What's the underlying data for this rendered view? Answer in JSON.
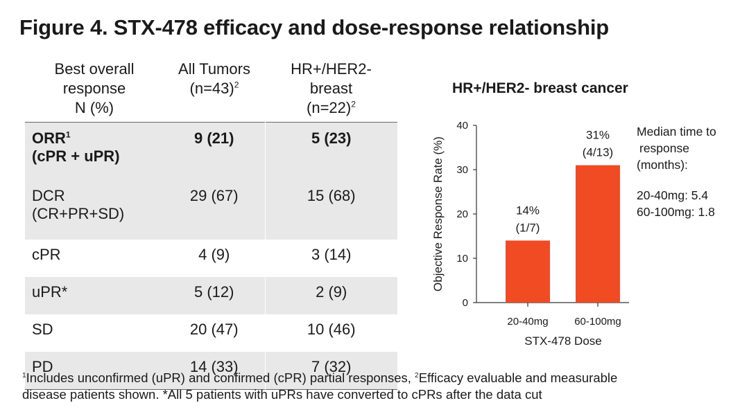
{
  "title": "Figure 4. STX-478 efficacy and dose-response relationship",
  "table": {
    "headers": [
      {
        "lines": [
          "Best overall",
          "response",
          "N (%)"
        ]
      },
      {
        "lines": [
          "All Tumors",
          "(n=43)"
        ],
        "sup": "2"
      },
      {
        "lines": [
          "HR+/HER2-",
          "breast",
          "(n=22)"
        ],
        "sup": "2"
      }
    ],
    "rows": [
      {
        "label": [
          "ORR",
          "(cPR + uPR)"
        ],
        "label_sup": "1",
        "all": "9 (21)",
        "breast": "5 (23)",
        "bold": true
      },
      {
        "label": [
          "DCR",
          "(CR+PR+SD)"
        ],
        "all": "29 (67)",
        "breast": "15 (68)"
      },
      {
        "label": [
          "cPR"
        ],
        "all": "4 (9)",
        "breast": "3 (14)"
      },
      {
        "label": [
          "uPR*"
        ],
        "all": "5 (12)",
        "breast": "2 (9)"
      },
      {
        "label": [
          "SD"
        ],
        "all": "20 (47)",
        "breast": "10 (46)"
      },
      {
        "label": [
          "PD"
        ],
        "all": "14 (33)",
        "breast": "7 (32)"
      }
    ]
  },
  "chart_data": {
    "type": "bar",
    "title": "HR+/HER2- breast cancer",
    "categories": [
      "20-40mg",
      "60-100mg"
    ],
    "values": [
      14,
      31
    ],
    "data_labels": [
      [
        "14%",
        "(1/7)"
      ],
      [
        "31%",
        "(4/13)"
      ]
    ],
    "xlabel": "STX-478 Dose",
    "ylabel": "Objective Response Rate (%)",
    "ylim": [
      0,
      40
    ],
    "yticks": [
      0,
      10,
      20,
      30,
      40
    ],
    "bar_color": "#f04b23",
    "grid": false
  },
  "annotation": {
    "lines": [
      "Median time to",
      "response",
      "(months):",
      "",
      "20-40mg: 5.4",
      "60-100mg: 1.8"
    ]
  },
  "footnote": {
    "sup1": "1",
    "line1a": "Includes unconfirmed (uPR) and confirmed (cPR) partial responses, ",
    "sup2": "2",
    "line1b": "Efficacy evaluable and measurable",
    "line2": "disease patients shown. *All 5 patients with uPRs have converted to cPRs after the data cut"
  }
}
